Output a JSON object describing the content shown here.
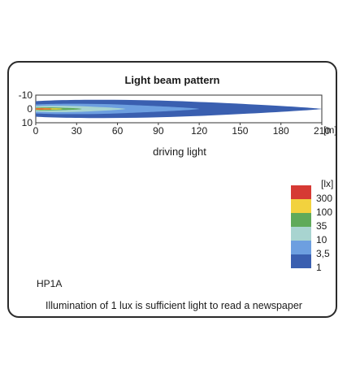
{
  "card": {
    "model": "HP1A",
    "note": "Illumination of 1 lux is sufficient light to read a newspaper"
  },
  "chart_data": {
    "type": "heatmap",
    "title": "Light beam pattern",
    "xlabel": "driving light",
    "x_unit": "[m]",
    "xlim": [
      0,
      210
    ],
    "ylim": [
      -10,
      10
    ],
    "x_ticks": [
      "0",
      "30",
      "60",
      "90",
      "120",
      "150",
      "180",
      "210"
    ],
    "y_ticks": [
      "-10",
      "0",
      "10"
    ],
    "legend": {
      "unit": "[lx]",
      "levels": [
        {
          "label": "300",
          "color": "#d63a34"
        },
        {
          "label": "100",
          "color": "#f2d23e"
        },
        {
          "label": "35",
          "color": "#5faa5a"
        },
        {
          "label": "10",
          "color": "#a8d4d0"
        },
        {
          "label": "3,5",
          "color": "#6d9fe0"
        },
        {
          "label": "1",
          "color": "#3a5fb0"
        }
      ]
    },
    "isolux_contours": [
      {
        "lux": "1",
        "color": "#3a5fb0",
        "reach_m": 210,
        "half_width_m": 7
      },
      {
        "lux": "3,5",
        "color": "#6d9fe0",
        "reach_m": 120,
        "half_width_m": 4
      },
      {
        "lux": "10",
        "color": "#a8d4d0",
        "reach_m": 66,
        "half_width_m": 2.5
      },
      {
        "lux": "35",
        "color": "#5faa5a",
        "reach_m": 34,
        "half_width_m": 1.2
      },
      {
        "lux": "100",
        "color": "#f2d23e",
        "reach_m": 20,
        "half_width_m": 0.7
      },
      {
        "lux": "300",
        "color": "#d63a34",
        "reach_m": 12,
        "half_width_m": 0.4
      }
    ]
  }
}
